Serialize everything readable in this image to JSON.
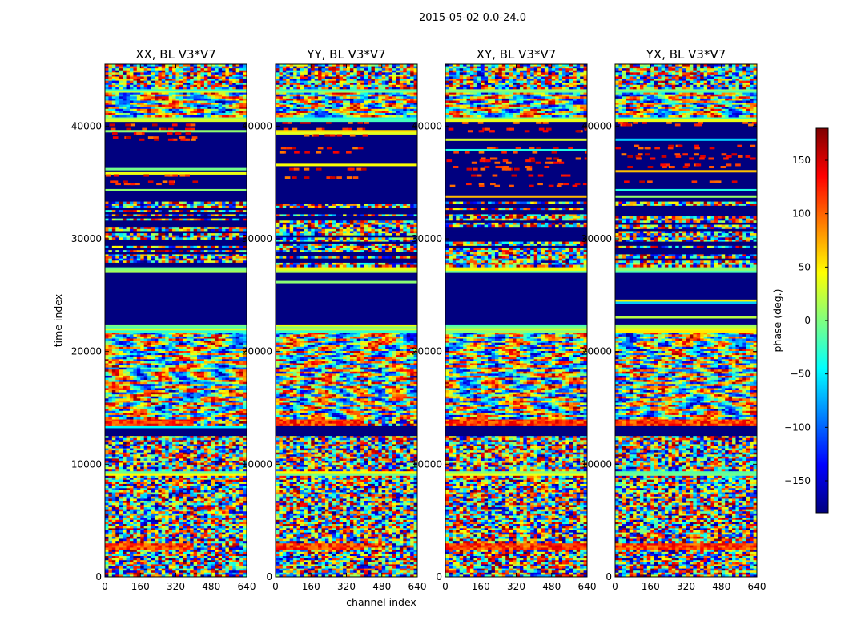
{
  "figure": {
    "suptitle": "2015-05-02 0.0-24.0"
  },
  "chart_data": {
    "type": "heatmap",
    "xlabel": "channel index",
    "ylabel": "time index",
    "xlim": [
      0,
      640
    ],
    "ylim": [
      0,
      45500
    ],
    "xticks": [
      "0",
      "160",
      "320",
      "480",
      "640"
    ],
    "yticks": [
      "0",
      "10000",
      "20000",
      "30000",
      "40000"
    ],
    "panels": [
      {
        "title": "XX, BL V3*V7",
        "band_speckle": 0.6,
        "warm_cut": 400
      },
      {
        "title": "YY, BL V3*V7",
        "band_speckle": 0.8,
        "warm_cut": 400
      },
      {
        "title": "XY, BL V3*V7",
        "band_speckle": 0.5,
        "warm_cut": 640
      },
      {
        "title": "YX, BL V3*V7",
        "band_speckle": 0.5,
        "warm_cut": 640
      }
    ],
    "time_segments": [
      {
        "from": 0,
        "to": 2400,
        "pattern": "noise"
      },
      {
        "from": 2400,
        "to": 3000,
        "pattern": "warm-band"
      },
      {
        "from": 3000,
        "to": 9000,
        "pattern": "noise"
      },
      {
        "from": 9000,
        "to": 9400,
        "pattern": "stripe-green"
      },
      {
        "from": 9400,
        "to": 12500,
        "pattern": "mixed"
      },
      {
        "from": 12500,
        "to": 13400,
        "pattern": "dark"
      },
      {
        "from": 13400,
        "to": 14000,
        "pattern": "warm-band"
      },
      {
        "from": 14000,
        "to": 21700,
        "pattern": "fringes"
      },
      {
        "from": 21700,
        "to": 22400,
        "pattern": "stripe-green"
      },
      {
        "from": 22400,
        "to": 27000,
        "pattern": "dark"
      },
      {
        "from": 27000,
        "to": 27500,
        "pattern": "stripe-green"
      },
      {
        "from": 27500,
        "to": 33300,
        "pattern": "striped"
      },
      {
        "from": 33300,
        "to": 34600,
        "pattern": "dark"
      },
      {
        "from": 34600,
        "to": 40400,
        "pattern": "dark-warm"
      },
      {
        "from": 40400,
        "to": 40800,
        "pattern": "stripe-green"
      },
      {
        "from": 40800,
        "to": 43000,
        "pattern": "fringes"
      },
      {
        "from": 43000,
        "to": 43300,
        "pattern": "stripe-green"
      },
      {
        "from": 43300,
        "to": 45500,
        "pattern": "noise"
      }
    ],
    "colorbar": {
      "label": "phase (deg.)",
      "colormap": "jet",
      "min": -180,
      "max": 180,
      "ticks": [
        "150",
        "100",
        "50",
        "0",
        "−50",
        "−100",
        "−150"
      ],
      "tick_values": [
        150,
        100,
        50,
        0,
        -50,
        -100,
        -150
      ]
    }
  }
}
